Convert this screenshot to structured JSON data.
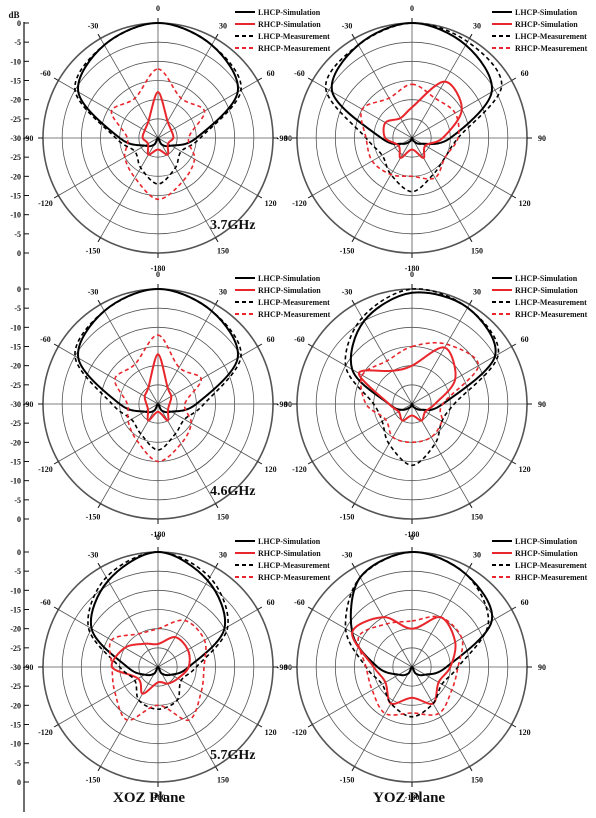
{
  "figure": {
    "db_unit": "dB",
    "db_ticks": [
      "0",
      "-5",
      "-10",
      "-15",
      "-20",
      "-25",
      "-30",
      "-25",
      "-20",
      "-15",
      "-10",
      "-5",
      "0"
    ],
    "angle_labels": [
      "0",
      "30",
      "60",
      "90",
      "120",
      "150",
      "-180",
      "-150",
      "-120",
      "-90",
      "-60",
      "-30"
    ],
    "column_labels": [
      "XOZ Plane",
      "YOZ Plane"
    ],
    "frequencies": [
      "3.7GHz",
      "4.6GHz",
      "5.7GHz"
    ],
    "legend": [
      {
        "name": "LHCP-Simulation",
        "color": "#000000",
        "dash": "solid"
      },
      {
        "name": "RHCP-Simulation",
        "color": "#e8262b",
        "dash": "solid"
      },
      {
        "name": "LHCP-Measurement",
        "color": "#000000",
        "dash": "dashed"
      },
      {
        "name": "RHCP-Measurement",
        "color": "#e8262b",
        "dash": "dashed"
      }
    ],
    "colors": {
      "lhcp": "#000000",
      "rhcp": "#e8262b",
      "grid": "#555555"
    }
  },
  "chart_data": [
    {
      "type": "polar-line",
      "plane": "XOZ Plane",
      "frequency": "3.7GHz",
      "r_axis": {
        "unit": "dB",
        "range": [
          -30,
          0
        ]
      },
      "series": [
        {
          "name": "LHCP-Simulation",
          "gain_db": [
            0,
            -2,
            -6,
            -20,
            -26,
            -28,
            -30,
            -28,
            -26,
            -20,
            -6,
            -2
          ]
        },
        {
          "name": "RHCP-Simulation",
          "gain_db": [
            -18,
            -25,
            -26,
            -26,
            -27,
            -25,
            -27,
            -25,
            -27,
            -26,
            -26,
            -25
          ]
        },
        {
          "name": "LHCP-Measurement",
          "gain_db": [
            0,
            -2,
            -5,
            -19,
            -23,
            -21,
            -18,
            -21,
            -23,
            -19,
            -5,
            -2
          ]
        },
        {
          "name": "RHCP-Measurement",
          "gain_db": [
            -12,
            -18,
            -16,
            -22,
            -19,
            -17,
            -14,
            -18,
            -20,
            -22,
            -16,
            -18
          ]
        }
      ]
    },
    {
      "type": "polar-line",
      "plane": "YOZ Plane",
      "frequency": "3.7GHz",
      "r_axis": {
        "unit": "dB",
        "range": [
          -30,
          0
        ]
      },
      "series": [
        {
          "name": "LHCP-Simulation",
          "gain_db": [
            0,
            -2,
            -6,
            -20,
            -27,
            -29,
            -30,
            -29,
            -27,
            -22,
            -6,
            -2
          ]
        },
        {
          "name": "RHCP-Simulation",
          "gain_db": [
            -22,
            -13,
            -15,
            -22,
            -26,
            -24,
            -27,
            -24,
            -26,
            -23,
            -22,
            -24
          ]
        },
        {
          "name": "LHCP-Measurement",
          "gain_db": [
            0,
            -1,
            -3,
            -18,
            -20,
            -19,
            -16,
            -19,
            -21,
            -18,
            -4,
            -2
          ]
        },
        {
          "name": "RHCP-Measurement",
          "gain_db": [
            -16,
            -18,
            -17,
            -18,
            -20,
            -18,
            -20,
            -19,
            -18,
            -18,
            -15,
            -18
          ]
        }
      ]
    },
    {
      "type": "polar-line",
      "plane": "XOZ Plane",
      "frequency": "4.6GHz",
      "r_axis": {
        "unit": "dB",
        "range": [
          -30,
          0
        ]
      },
      "series": [
        {
          "name": "LHCP-Simulation",
          "gain_db": [
            0,
            -2,
            -6,
            -20,
            -26,
            -28,
            -30,
            -28,
            -26,
            -20,
            -6,
            -2
          ]
        },
        {
          "name": "RHCP-Simulation",
          "gain_db": [
            -17,
            -25,
            -26,
            -27,
            -27,
            -25,
            -28,
            -25,
            -27,
            -27,
            -26,
            -25
          ]
        },
        {
          "name": "LHCP-Measurement",
          "gain_db": [
            0,
            -2,
            -5,
            -18,
            -22,
            -21,
            -18,
            -21,
            -22,
            -18,
            -5,
            -2
          ]
        },
        {
          "name": "RHCP-Measurement",
          "gain_db": [
            -12,
            -19,
            -17,
            -23,
            -20,
            -18,
            -15,
            -19,
            -21,
            -22,
            -17,
            -18
          ]
        }
      ]
    },
    {
      "type": "polar-line",
      "plane": "YOZ Plane",
      "frequency": "4.6GHz",
      "r_axis": {
        "unit": "dB",
        "range": [
          -30,
          0
        ]
      },
      "series": [
        {
          "name": "LHCP-Simulation",
          "gain_db": [
            -1,
            -1,
            -5,
            -22,
            -27,
            -29,
            -30,
            -29,
            -27,
            -24,
            -12,
            -5
          ]
        },
        {
          "name": "RHCP-Simulation",
          "gain_db": [
            -20,
            -13,
            -17,
            -24,
            -26,
            -25,
            -27,
            -25,
            -26,
            -24,
            -14,
            -20
          ]
        },
        {
          "name": "LHCP-Measurement",
          "gain_db": [
            0,
            -1,
            -4,
            -19,
            -21,
            -18,
            -14,
            -18,
            -21,
            -20,
            -10,
            -4
          ]
        },
        {
          "name": "RHCP-Measurement",
          "gain_db": [
            -15,
            -12,
            -10,
            -22,
            -21,
            -20,
            -20,
            -20,
            -22,
            -18,
            -15,
            -17
          ]
        }
      ]
    },
    {
      "type": "polar-line",
      "plane": "XOZ Plane",
      "frequency": "5.7GHz",
      "r_axis": {
        "unit": "dB",
        "range": [
          -30,
          0
        ]
      },
      "series": [
        {
          "name": "LHCP-Simulation",
          "gain_db": [
            0,
            -4,
            -10,
            -22,
            -26,
            -28,
            -30,
            -28,
            -26,
            -22,
            -10,
            -4
          ]
        },
        {
          "name": "RHCP-Simulation",
          "gain_db": [
            -24,
            -21,
            -21,
            -22,
            -24,
            -25,
            -26,
            -22,
            -24,
            -18,
            -20,
            -23
          ]
        },
        {
          "name": "LHCP-Measurement",
          "gain_db": [
            0,
            -3,
            -9,
            -20,
            -23,
            -20,
            -19,
            -20,
            -23,
            -20,
            -9,
            -3
          ]
        },
        {
          "name": "RHCP-Measurement",
          "gain_db": [
            -20,
            -16,
            -16,
            -18,
            -17,
            -14,
            -20,
            -14,
            -17,
            -18,
            -16,
            -20
          ]
        }
      ]
    },
    {
      "type": "polar-line",
      "plane": "YOZ Plane",
      "frequency": "5.7GHz",
      "r_axis": {
        "unit": "dB",
        "range": [
          -30,
          0
        ]
      },
      "series": [
        {
          "name": "LHCP-Simulation",
          "gain_db": [
            0,
            -2,
            -6,
            -21,
            -26,
            -28,
            -30,
            -28,
            -26,
            -21,
            -12,
            -3
          ]
        },
        {
          "name": "RHCP-Simulation",
          "gain_db": [
            -20,
            -15,
            -17,
            -20,
            -22,
            -19,
            -22,
            -19,
            -22,
            -20,
            -12,
            -15
          ]
        },
        {
          "name": "LHCP-Measurement",
          "gain_db": [
            0,
            -2,
            -7,
            -18,
            -21,
            -19,
            -17,
            -19,
            -21,
            -18,
            -10,
            -3
          ]
        },
        {
          "name": "RHCP-Measurement",
          "gain_db": [
            -18,
            -15,
            -15,
            -18,
            -18,
            -16,
            -18,
            -16,
            -18,
            -18,
            -14,
            -17
          ]
        }
      ]
    }
  ]
}
